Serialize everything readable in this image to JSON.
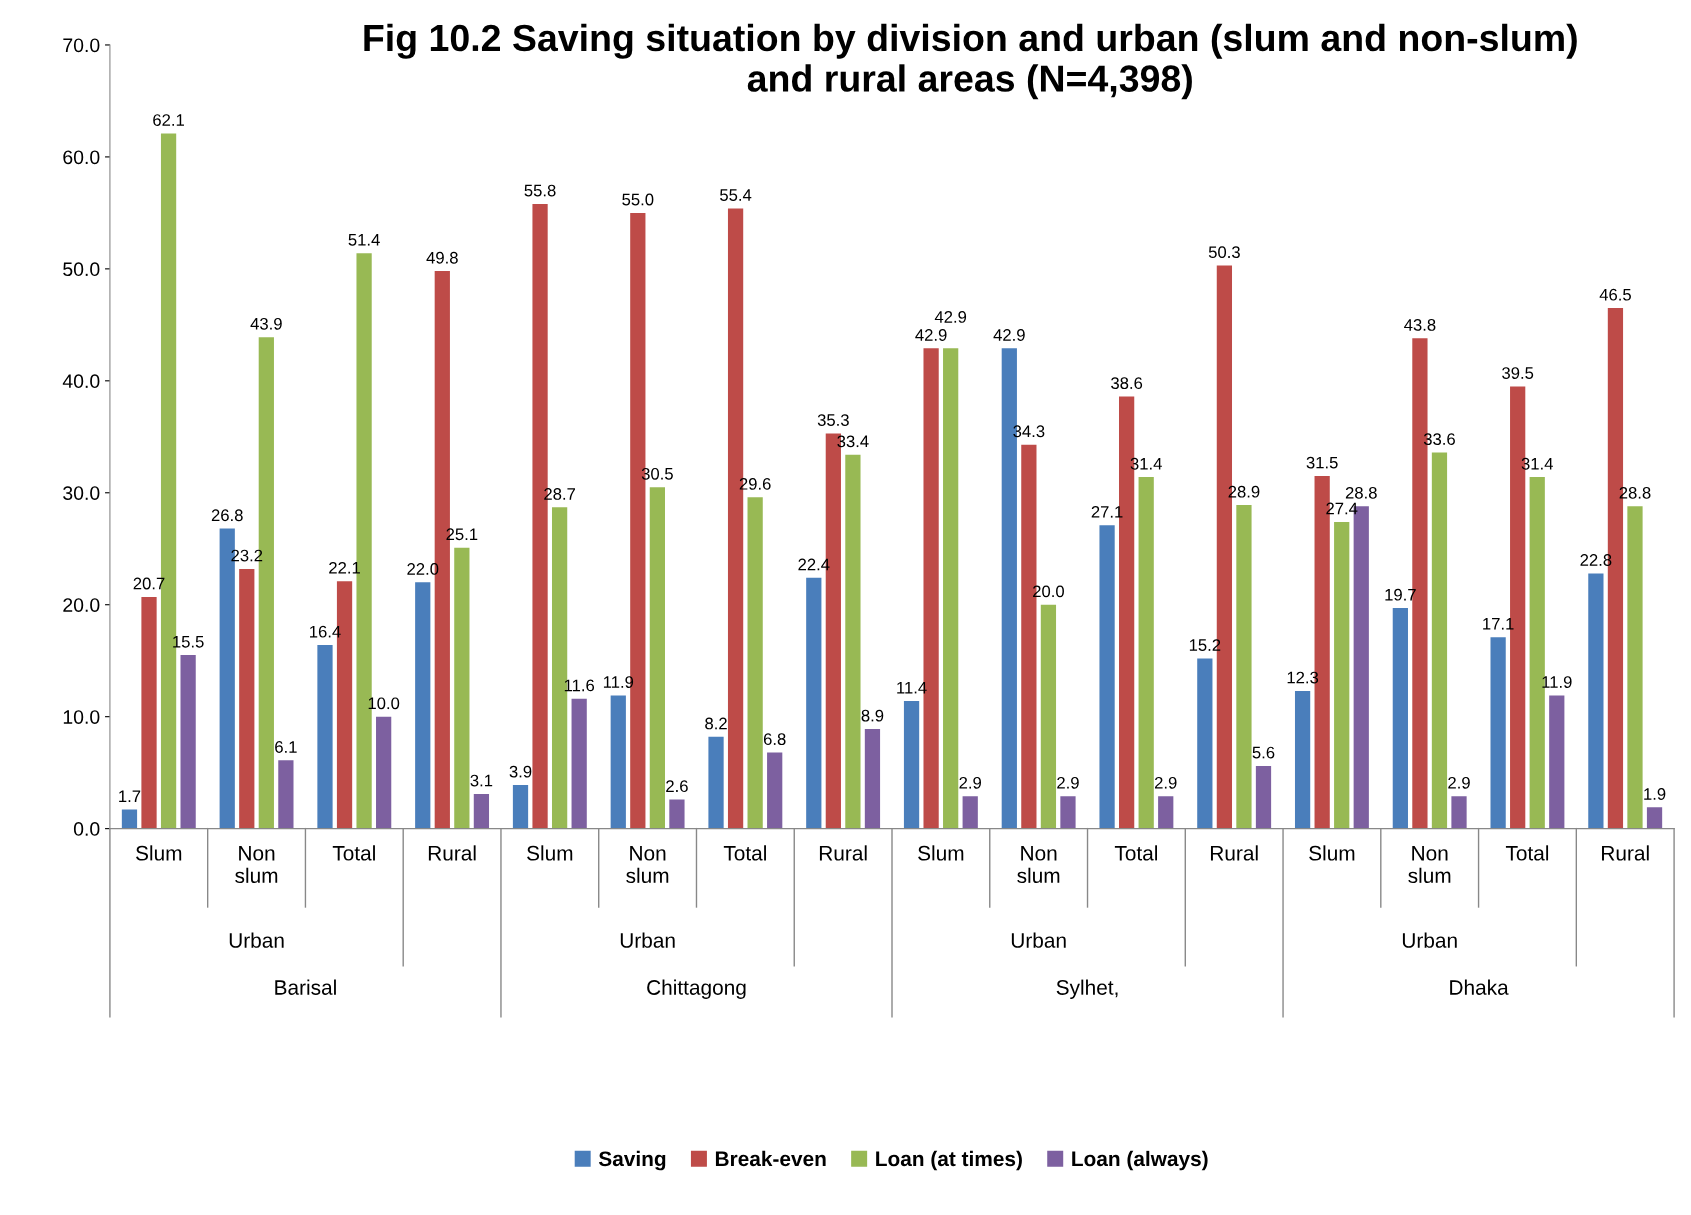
{
  "chart_data": {
    "type": "bar",
    "title": "Fig 10.2 Saving situation by division and urban (slum and non-slum)\nand rural areas (N=4,398)",
    "categories": [
      "Slum",
      "Non\nslum",
      "Total",
      "Rural",
      "Slum",
      "Non\nslum",
      "Total",
      "Rural",
      "Slum",
      "Non\nslum",
      "Total",
      "Rural",
      "Slum",
      "Non\nslum",
      "Total",
      "Rural"
    ],
    "series": [
      {
        "name": "Saving",
        "color": "#4a7ebb",
        "values": [
          1.7,
          26.8,
          16.4,
          22.0,
          3.9,
          11.9,
          8.2,
          22.4,
          11.4,
          42.9,
          27.1,
          15.2,
          12.3,
          19.7,
          17.1,
          22.8
        ],
        "value_labels": [
          "1.7",
          "26.8",
          "16.4",
          "22.0",
          "3.9",
          "11.9",
          "8.2",
          "22.4",
          "11.4",
          "42.9",
          "27.1",
          "15.2",
          "12.3",
          "19.7",
          "17.1",
          "22.8"
        ]
      },
      {
        "name": "Break-even",
        "color": "#be4b48",
        "values": [
          20.7,
          23.2,
          22.1,
          49.8,
          55.8,
          55.0,
          55.4,
          35.3,
          42.9,
          34.3,
          38.6,
          50.3,
          31.5,
          43.8,
          39.5,
          46.5
        ],
        "value_labels": [
          "20.7",
          "23.2",
          "22.1",
          "49.8",
          "55.8",
          "55.0",
          "55.4",
          "35.3",
          "42.9",
          "34.3",
          "38.6",
          "50.3",
          "31.5",
          "43.8",
          "39.5",
          "46.5"
        ]
      },
      {
        "name": "Loan (at times)",
        "color": "#98b954",
        "values": [
          62.1,
          43.9,
          51.4,
          25.1,
          28.7,
          30.5,
          29.6,
          33.4,
          42.9,
          20.0,
          31.4,
          28.9,
          27.4,
          33.6,
          31.4,
          28.8
        ],
        "value_labels": [
          "62.1",
          "43.9",
          "51.4",
          "25.1",
          "28.7",
          "30.5",
          "29.6",
          "33.4",
          "42.9",
          "20.0",
          "31.4",
          "28.9",
          "27.4",
          "33.6",
          "31.4",
          "28.8"
        ]
      },
      {
        "name": "Loan (always)",
        "color": "#7d60a0",
        "values": [
          15.5,
          6.1,
          10.0,
          3.1,
          11.6,
          2.6,
          6.8,
          8.9,
          2.9,
          2.9,
          2.9,
          5.6,
          28.8,
          2.9,
          11.9,
          1.9
        ],
        "value_labels": [
          "15.5",
          "6.1",
          "10.0",
          "3.1",
          "11.6",
          "2.6",
          "6.8",
          "8.9",
          "2.9",
          "2.9",
          "2.9",
          "5.6",
          "28.8",
          "2.9",
          "11.9",
          "1.9"
        ]
      }
    ],
    "annotations": [
      "Urban",
      "Barisal",
      "Urban",
      "Chittagong",
      "Urban",
      "Sylhet,",
      "Urban",
      "Dhaka"
    ],
    "ylim": [
      0,
      70
    ],
    "yticks": [
      {
        "value": 0,
        "label": "0.0"
      },
      {
        "value": 10,
        "label": "10.0"
      },
      {
        "value": 20,
        "label": "20.0"
      },
      {
        "value": 30,
        "label": "30.0"
      },
      {
        "value": 40,
        "label": "40.0"
      },
      {
        "value": 50,
        "label": "50.0"
      },
      {
        "value": 60,
        "label": "60.0"
      },
      {
        "value": 70,
        "label": "70.0"
      }
    ],
    "grid": false,
    "legend": "bottom"
  }
}
